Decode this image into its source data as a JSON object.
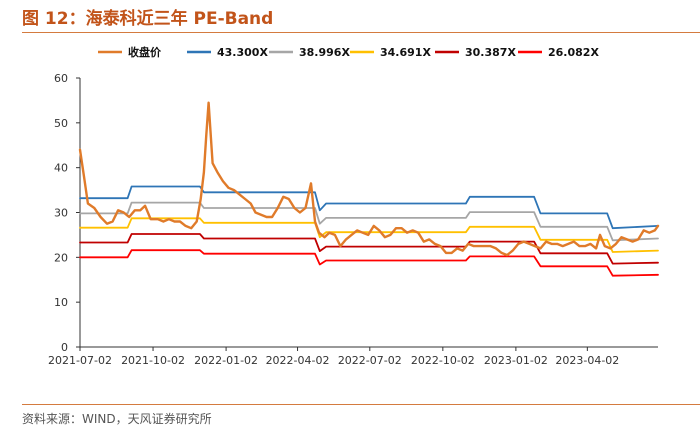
{
  "header": {
    "title": "图 12：海泰科近三年 PE-Band"
  },
  "footer": {
    "source": "资料来源：WIND，天风证券研究所"
  },
  "colors": {
    "close": "#e07b2a",
    "b43": "#2e75b6",
    "b39": "#a6a6a6",
    "b35": "#ffc000",
    "b30": "#c00000",
    "b26": "#ff0000"
  },
  "chart_data": {
    "type": "line",
    "ylim": [
      0,
      60
    ],
    "yticks": [
      0,
      10,
      20,
      30,
      40,
      50,
      60
    ],
    "xlim": [
      "2021-07-02",
      "2023-06-30"
    ],
    "xticks": [
      "2021-07-02",
      "2021-10-02",
      "2022-01-02",
      "2022-04-02",
      "2022-07-02",
      "2022-10-02",
      "2023-01-02",
      "2023-04-02"
    ],
    "legend_position": "top",
    "series": [
      {
        "name": "收盘价",
        "color": "#e07b2a",
        "points": [
          [
            "2021-07-02",
            44
          ],
          [
            "2021-07-07",
            38
          ],
          [
            "2021-07-12",
            32
          ],
          [
            "2021-07-20",
            31
          ],
          [
            "2021-07-28",
            29
          ],
          [
            "2021-08-05",
            27.5
          ],
          [
            "2021-08-12",
            28
          ],
          [
            "2021-08-19",
            30.5
          ],
          [
            "2021-08-26",
            30
          ],
          [
            "2021-09-02",
            29
          ],
          [
            "2021-09-09",
            30.5
          ],
          [
            "2021-09-16",
            30.5
          ],
          [
            "2021-09-22",
            31.5
          ],
          [
            "2021-09-29",
            28.5
          ],
          [
            "2021-10-08",
            28.5
          ],
          [
            "2021-10-15",
            28
          ],
          [
            "2021-10-22",
            28.5
          ],
          [
            "2021-10-29",
            28
          ],
          [
            "2021-11-05",
            28
          ],
          [
            "2021-11-12",
            27
          ],
          [
            "2021-11-19",
            26.5
          ],
          [
            "2021-11-26",
            28
          ],
          [
            "2021-12-01",
            33
          ],
          [
            "2021-12-05",
            39
          ],
          [
            "2021-12-08",
            47
          ],
          [
            "2021-12-11",
            54.5
          ],
          [
            "2021-12-16",
            41
          ],
          [
            "2021-12-22",
            39
          ],
          [
            "2021-12-29",
            37
          ],
          [
            "2022-01-05",
            35.5
          ],
          [
            "2022-01-12",
            35
          ],
          [
            "2022-01-19",
            34
          ],
          [
            "2022-01-26",
            33
          ],
          [
            "2022-02-02",
            32
          ],
          [
            "2022-02-08",
            30
          ],
          [
            "2022-02-15",
            29.5
          ],
          [
            "2022-02-22",
            29
          ],
          [
            "2022-03-01",
            29
          ],
          [
            "2022-03-08",
            31
          ],
          [
            "2022-03-15",
            33.5
          ],
          [
            "2022-03-22",
            33
          ],
          [
            "2022-03-29",
            31
          ],
          [
            "2022-04-05",
            30
          ],
          [
            "2022-04-12",
            31
          ],
          [
            "2022-04-19",
            36.5
          ],
          [
            "2022-04-24",
            28
          ],
          [
            "2022-04-29",
            25.5
          ],
          [
            "2022-05-06",
            24.5
          ],
          [
            "2022-05-12",
            25.5
          ],
          [
            "2022-05-19",
            25
          ],
          [
            "2022-05-26",
            22.5
          ],
          [
            "2022-06-02",
            24
          ],
          [
            "2022-06-09",
            25
          ],
          [
            "2022-06-16",
            26
          ],
          [
            "2022-06-23",
            25.5
          ],
          [
            "2022-06-30",
            25
          ],
          [
            "2022-07-07",
            27
          ],
          [
            "2022-07-14",
            26
          ],
          [
            "2022-07-21",
            24.5
          ],
          [
            "2022-07-28",
            25
          ],
          [
            "2022-08-04",
            26.5
          ],
          [
            "2022-08-11",
            26.5
          ],
          [
            "2022-08-18",
            25.5
          ],
          [
            "2022-08-25",
            26
          ],
          [
            "2022-09-01",
            25.5
          ],
          [
            "2022-09-08",
            23.5
          ],
          [
            "2022-09-15",
            24
          ],
          [
            "2022-09-22",
            23
          ],
          [
            "2022-09-29",
            22.5
          ],
          [
            "2022-10-06",
            21
          ],
          [
            "2022-10-13",
            21
          ],
          [
            "2022-10-20",
            22
          ],
          [
            "2022-10-27",
            21.5
          ],
          [
            "2022-11-03",
            23
          ],
          [
            "2022-11-10",
            22.5
          ],
          [
            "2022-11-17",
            22.5
          ],
          [
            "2022-11-24",
            22.5
          ],
          [
            "2022-12-01",
            22.5
          ],
          [
            "2022-12-08",
            22
          ],
          [
            "2022-12-15",
            21
          ],
          [
            "2022-12-22",
            20.5
          ],
          [
            "2022-12-29",
            21.5
          ],
          [
            "2023-01-05",
            23
          ],
          [
            "2023-01-12",
            23.5
          ],
          [
            "2023-01-19",
            23
          ],
          [
            "2023-01-26",
            22.5
          ],
          [
            "2023-02-02",
            22
          ],
          [
            "2023-02-09",
            23.5
          ],
          [
            "2023-02-16",
            23
          ],
          [
            "2023-02-23",
            23
          ],
          [
            "2023-03-02",
            22.5
          ],
          [
            "2023-03-09",
            23
          ],
          [
            "2023-03-16",
            23.5
          ],
          [
            "2023-03-23",
            22.5
          ],
          [
            "2023-03-30",
            22.5
          ],
          [
            "2023-04-06",
            23
          ],
          [
            "2023-04-13",
            22
          ],
          [
            "2023-04-18",
            25
          ],
          [
            "2023-04-24",
            22.5
          ],
          [
            "2023-05-01",
            22
          ],
          [
            "2023-05-08",
            23
          ],
          [
            "2023-05-15",
            24.5
          ],
          [
            "2023-05-22",
            24
          ],
          [
            "2023-05-29",
            23.5
          ],
          [
            "2023-06-05",
            24
          ],
          [
            "2023-06-12",
            26
          ],
          [
            "2023-06-19",
            25.5
          ],
          [
            "2023-06-26",
            26
          ],
          [
            "2023-06-30",
            27
          ]
        ]
      },
      {
        "name": "43.300X",
        "color": "#2e75b6",
        "points": [
          [
            "2021-07-02",
            33.2
          ],
          [
            "2021-08-31",
            33.2
          ],
          [
            "2021-09-05",
            35.8
          ],
          [
            "2021-11-30",
            35.8
          ],
          [
            "2021-12-05",
            34.5
          ],
          [
            "2022-04-24",
            34.5
          ],
          [
            "2022-04-30",
            30.5
          ],
          [
            "2022-05-08",
            32
          ],
          [
            "2022-10-31",
            32
          ],
          [
            "2022-11-05",
            33.5
          ],
          [
            "2023-01-25",
            33.5
          ],
          [
            "2023-02-02",
            29.8
          ],
          [
            "2023-04-27",
            29.8
          ],
          [
            "2023-05-04",
            26.5
          ],
          [
            "2023-06-30",
            27
          ]
        ]
      },
      {
        "name": "38.996X",
        "color": "#a6a6a6",
        "points": [
          [
            "2021-07-02",
            29.8
          ],
          [
            "2021-08-31",
            29.8
          ],
          [
            "2021-09-05",
            32.2
          ],
          [
            "2021-11-30",
            32.2
          ],
          [
            "2021-12-05",
            31
          ],
          [
            "2022-04-24",
            31
          ],
          [
            "2022-04-30",
            27.5
          ],
          [
            "2022-05-08",
            28.8
          ],
          [
            "2022-10-31",
            28.8
          ],
          [
            "2022-11-05",
            30.1
          ],
          [
            "2023-01-25",
            30.1
          ],
          [
            "2023-02-02",
            26.8
          ],
          [
            "2023-04-27",
            26.8
          ],
          [
            "2023-05-04",
            23.8
          ],
          [
            "2023-06-30",
            24.2
          ]
        ]
      },
      {
        "name": "34.691X",
        "color": "#ffc000",
        "points": [
          [
            "2021-07-02",
            26.6
          ],
          [
            "2021-08-31",
            26.6
          ],
          [
            "2021-09-05",
            28.7
          ],
          [
            "2021-11-30",
            28.7
          ],
          [
            "2021-12-05",
            27.7
          ],
          [
            "2022-04-24",
            27.7
          ],
          [
            "2022-04-30",
            24.5
          ],
          [
            "2022-05-08",
            25.6
          ],
          [
            "2022-10-31",
            25.6
          ],
          [
            "2022-11-05",
            26.8
          ],
          [
            "2023-01-25",
            26.8
          ],
          [
            "2023-02-02",
            23.9
          ],
          [
            "2023-04-27",
            23.9
          ],
          [
            "2023-05-04",
            21.2
          ],
          [
            "2023-06-30",
            21.5
          ]
        ]
      },
      {
        "name": "30.387X",
        "color": "#c00000",
        "points": [
          [
            "2021-07-02",
            23.3
          ],
          [
            "2021-08-31",
            23.3
          ],
          [
            "2021-09-05",
            25.2
          ],
          [
            "2021-11-30",
            25.2
          ],
          [
            "2021-12-05",
            24.2
          ],
          [
            "2022-04-24",
            24.2
          ],
          [
            "2022-04-30",
            21.4
          ],
          [
            "2022-05-08",
            22.4
          ],
          [
            "2022-10-31",
            22.4
          ],
          [
            "2022-11-05",
            23.5
          ],
          [
            "2023-01-25",
            23.5
          ],
          [
            "2023-02-02",
            20.9
          ],
          [
            "2023-04-27",
            20.9
          ],
          [
            "2023-05-04",
            18.6
          ],
          [
            "2023-06-30",
            18.8
          ]
        ]
      },
      {
        "name": "26.082X",
        "color": "#ff0000",
        "points": [
          [
            "2021-07-02",
            20
          ],
          [
            "2021-08-31",
            20
          ],
          [
            "2021-09-05",
            21.6
          ],
          [
            "2021-11-30",
            21.6
          ],
          [
            "2021-12-05",
            20.8
          ],
          [
            "2022-04-24",
            20.8
          ],
          [
            "2022-04-30",
            18.4
          ],
          [
            "2022-05-08",
            19.3
          ],
          [
            "2022-10-31",
            19.3
          ],
          [
            "2022-11-05",
            20.2
          ],
          [
            "2023-01-25",
            20.2
          ],
          [
            "2023-02-02",
            18
          ],
          [
            "2023-04-27",
            18
          ],
          [
            "2023-05-04",
            15.9
          ],
          [
            "2023-06-30",
            16.1
          ]
        ]
      }
    ]
  }
}
